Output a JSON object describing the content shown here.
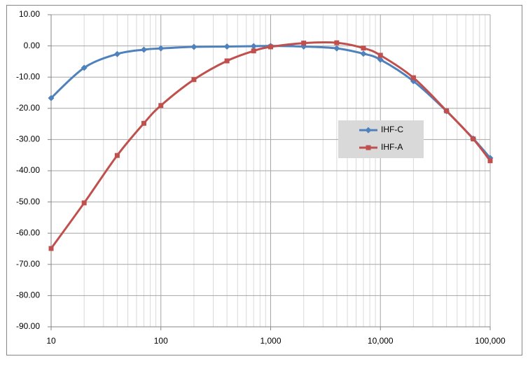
{
  "chart_data": {
    "type": "line",
    "log_x": true,
    "grid": true,
    "minor_grid": true,
    "legend": "right",
    "x": [
      10,
      20,
      40,
      70,
      100,
      200,
      400,
      700,
      1000,
      2000,
      4000,
      7000,
      10000,
      20000,
      40000,
      70000,
      100000
    ],
    "series": [
      {
        "name": "IHF-C",
        "color": "#4f81bd",
        "marker": "diamond",
        "values": [
          -16.7,
          -7.0,
          -2.6,
          -1.2,
          -0.8,
          -0.3,
          -0.2,
          -0.1,
          0,
          -0.2,
          -0.8,
          -2.5,
          -4.4,
          -11.3,
          -20.9,
          -29.7,
          -35.9
        ]
      },
      {
        "name": "IHF-A",
        "color": "#c0504d",
        "marker": "square",
        "values": [
          -64.9,
          -50.3,
          -35.1,
          -24.8,
          -19.1,
          -10.8,
          -4.8,
          -1.6,
          -0.3,
          0.9,
          1.0,
          -0.7,
          -3.0,
          -10.2,
          -20.8,
          -29.8,
          -36.8
        ]
      }
    ],
    "xlim": [
      10,
      100000
    ],
    "xticks": [
      10,
      100,
      {
        "value": 1000,
        "label": "1,000"
      },
      {
        "value": 10000,
        "label": "10,000"
      },
      {
        "value": 100000,
        "label": "100,000"
      }
    ],
    "ylim": [
      -90,
      10
    ],
    "yticks": [
      {
        "value": 10,
        "label": "10.00"
      },
      {
        "value": 0,
        "label": "0.00"
      },
      {
        "value": -10,
        "label": "-10.00"
      },
      {
        "value": -20,
        "label": "-20.00"
      },
      {
        "value": -30,
        "label": "-30.00"
      },
      {
        "value": -40,
        "label": "-40.00"
      },
      {
        "value": -50,
        "label": "-50.00"
      },
      {
        "value": -60,
        "label": "-60.00"
      },
      {
        "value": -70,
        "label": "-70.00"
      },
      {
        "value": -80,
        "label": "-80.00"
      },
      {
        "value": -90,
        "label": "-90.00"
      }
    ]
  }
}
